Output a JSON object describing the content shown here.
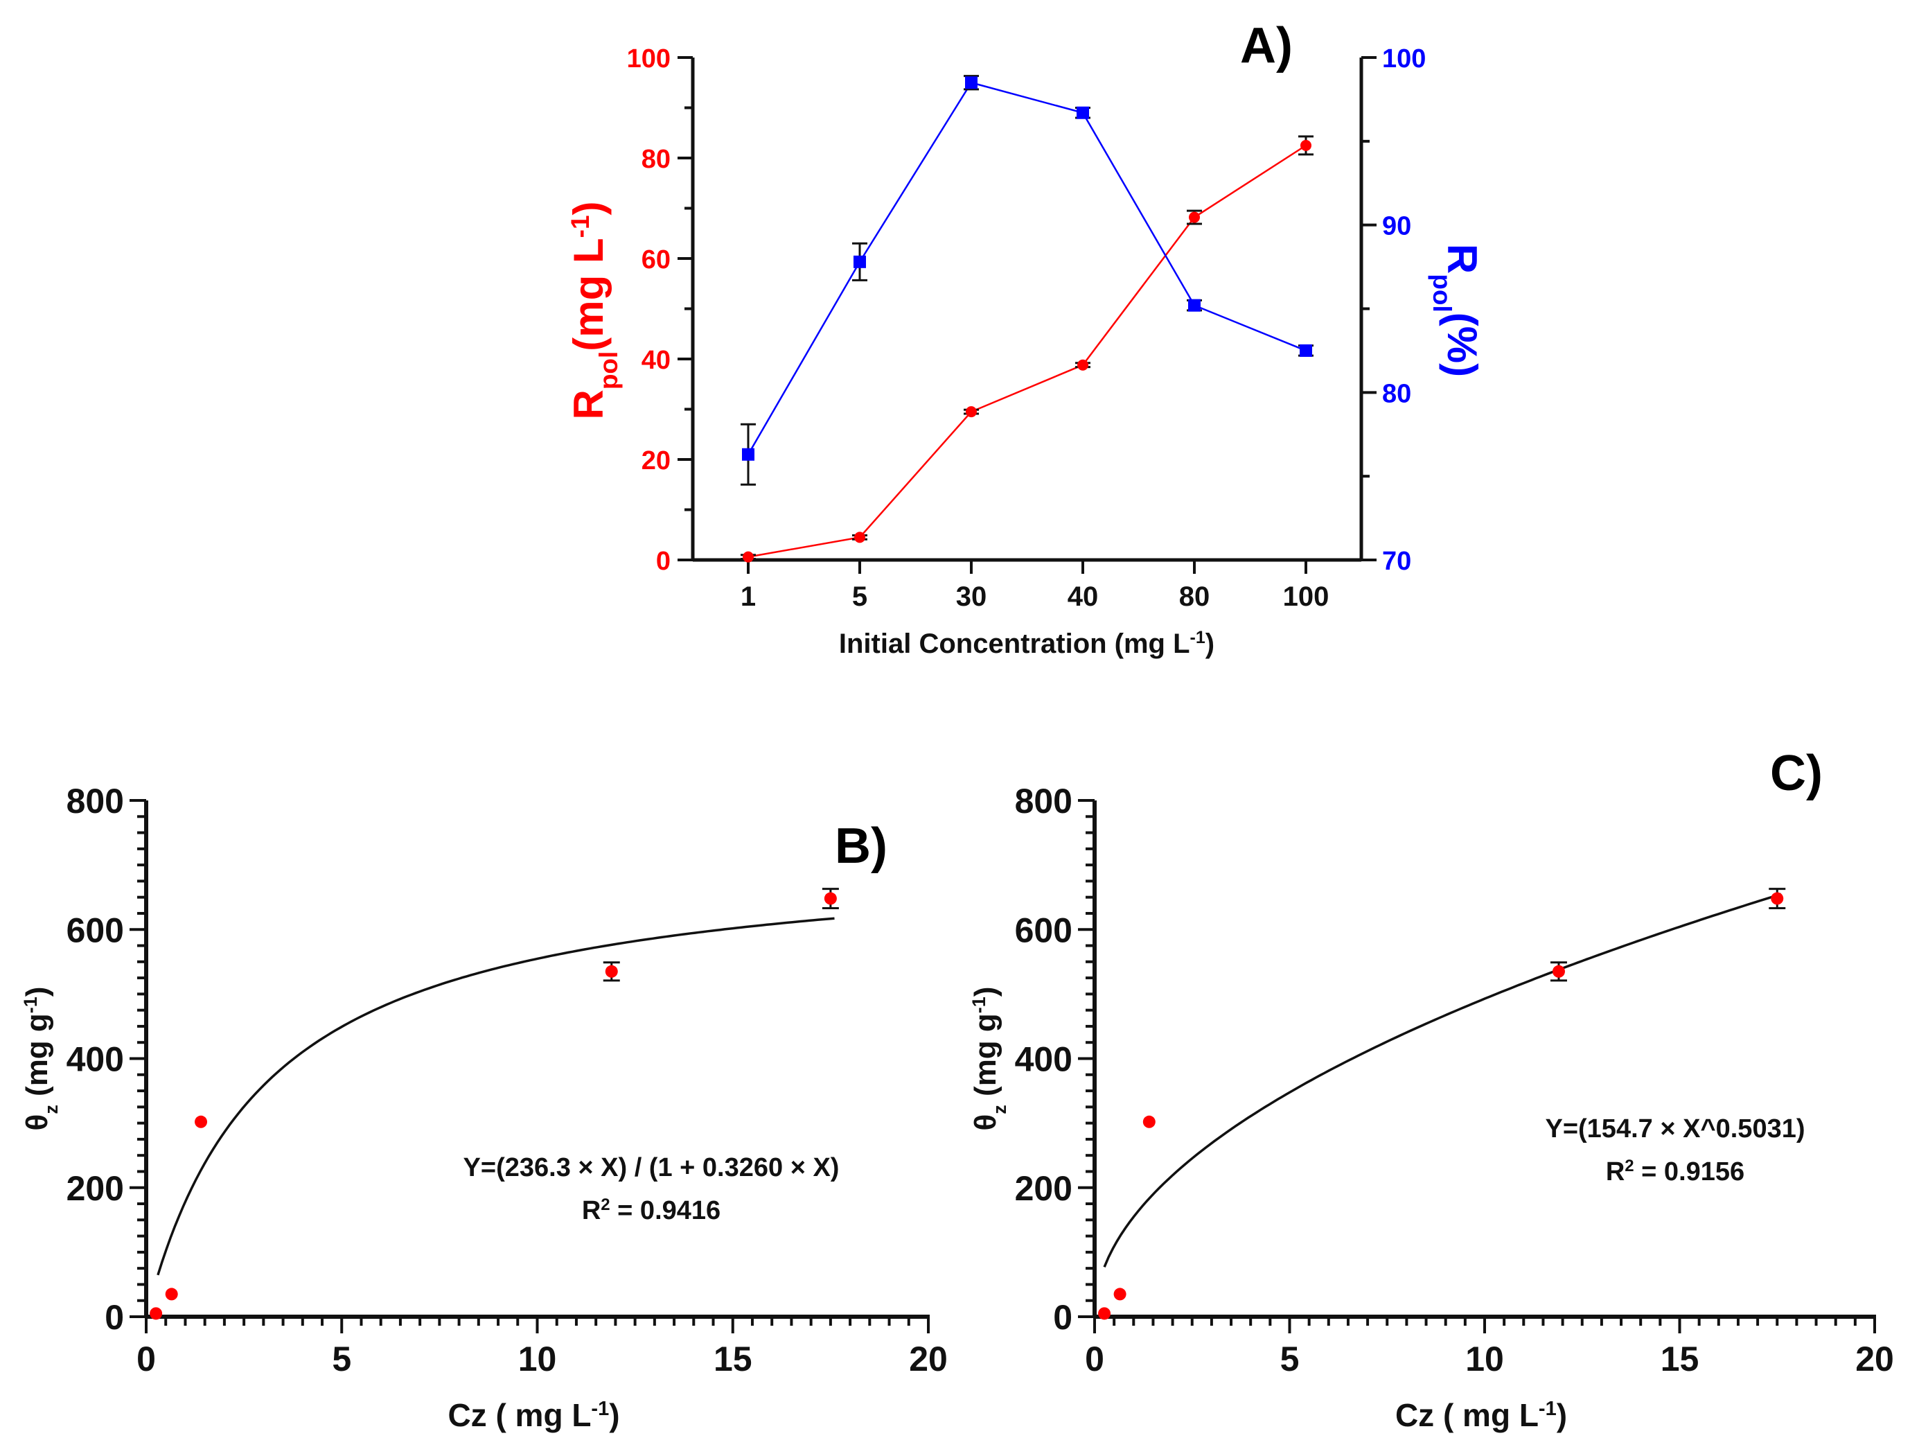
{
  "chart_data": [
    {
      "panel": "A",
      "panel_label": "A)",
      "type": "line",
      "categories": [
        "1",
        "5",
        "30",
        "40",
        "80",
        "100"
      ],
      "xlabel": "Initial Concentration (mg L",
      "xlabel_sup": "-1",
      "xlabel_tail": ")",
      "left_axis": {
        "label_main": "R",
        "label_sub": "pol",
        "label_rest": "(mg L",
        "label_sup": "-1",
        "label_tail": ")",
        "ylim": [
          0,
          100
        ],
        "ticks": [
          0,
          20,
          40,
          60,
          80,
          100
        ],
        "color": "#ff0000"
      },
      "right_axis": {
        "label_main": "R",
        "label_sub": "pol",
        "label_rest": "(%)",
        "ylim": [
          70,
          100
        ],
        "ticks": [
          70,
          80,
          90,
          100
        ],
        "color": "#0000ff"
      },
      "series": [
        {
          "name": "Rpol (mg L-1)",
          "axis": "left",
          "color": "#ff0000",
          "marker": "circle",
          "values": [
            0.6,
            4.5,
            29.5,
            38.8,
            68.2,
            82.5
          ],
          "errors": [
            0.4,
            0.4,
            0.4,
            0.4,
            1.3,
            1.8
          ]
        },
        {
          "name": "Rpol (%)",
          "axis": "right",
          "color": "#0000ff",
          "marker": "square",
          "values": [
            76.3,
            87.8,
            98.5,
            96.7,
            85.2,
            82.5
          ],
          "errors": [
            1.8,
            1.1,
            0.4,
            0.3,
            0.3,
            0.3
          ]
        }
      ]
    },
    {
      "panel": "B",
      "panel_label": "B)",
      "type": "scatter",
      "xlabel": "Cz ( mg L",
      "xlabel_sup": "-1",
      "xlabel_tail": ")",
      "ylabel_main": "θ",
      "ylabel_sub": "z",
      "ylabel_rest": " (mg g",
      "ylabel_sup": "-1",
      "ylabel_tail": ")",
      "xlim": [
        0,
        20
      ],
      "ylim": [
        0,
        800
      ],
      "xticks": [
        0,
        5,
        10,
        15,
        20
      ],
      "yticks": [
        0,
        200,
        400,
        600,
        800
      ],
      "points": {
        "x": [
          0.25,
          0.65,
          1.4,
          11.9,
          17.5
        ],
        "y": [
          5,
          35,
          302,
          535,
          648
        ],
        "errors": [
          2,
          2,
          3,
          14,
          15
        ]
      },
      "fit": {
        "model": "langmuir",
        "a": 236.3,
        "b": 0.326,
        "x_start": 0.3,
        "x_end": 17.6
      },
      "equation": "Y=(236.3 × X) / (1 + 0.3260 × X)",
      "r2_prefix": "R",
      "r2_sup": "2",
      "r2_value": " = 0.9416"
    },
    {
      "panel": "C",
      "panel_label": "C)",
      "type": "scatter",
      "xlabel": "Cz ( mg L",
      "xlabel_sup": "-1",
      "xlabel_tail": ")",
      "ylabel_main": "θ",
      "ylabel_sub": "z",
      "ylabel_rest": " (mg g",
      "ylabel_sup": "-1",
      "ylabel_tail": ")",
      "xlim": [
        0,
        20
      ],
      "ylim": [
        0,
        800
      ],
      "xticks": [
        0,
        5,
        10,
        15,
        20
      ],
      "yticks": [
        0,
        200,
        400,
        600,
        800
      ],
      "points": {
        "x": [
          0.25,
          0.65,
          1.4,
          11.9,
          17.5
        ],
        "y": [
          5,
          35,
          302,
          535,
          648
        ],
        "errors": [
          2,
          2,
          3,
          14,
          15
        ]
      },
      "fit": {
        "model": "freundlich",
        "k": 154.7,
        "n": 0.5031,
        "x_start": 0.25,
        "x_end": 17.6
      },
      "equation": "Y=(154.7 × X^0.5031)",
      "r2_prefix": "R",
      "r2_sup": "2",
      "r2_value": " = 0.9156"
    }
  ]
}
